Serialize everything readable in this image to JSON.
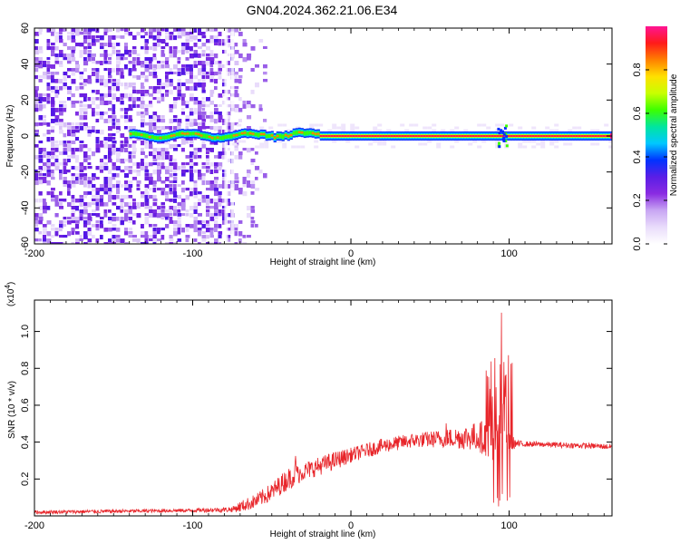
{
  "title": "GN04.2024.362.21.06.E34",
  "chart_data": [
    {
      "type": "heatmap",
      "xlabel": "Height of straight line (km)",
      "ylabel": "Frequency (Hz)",
      "xlim": [
        -200,
        165
      ],
      "ylim": [
        -60,
        60
      ],
      "xticks": [
        -200,
        -100,
        0,
        100
      ],
      "yticks": [
        -60,
        -40,
        -20,
        0,
        20,
        40,
        60
      ],
      "colorbar": {
        "label": "Normalized spectral amplitude",
        "range": [
          0,
          1
        ],
        "ticks": [
          "0.0",
          "0.2",
          "0.4",
          "0.6",
          "0.8"
        ],
        "tick_values": [
          0,
          0.2,
          0.4,
          0.6,
          0.8
        ],
        "colormap": [
          "#ffffff",
          "#e9dcfb",
          "#c8a6f3",
          "#8a2be2",
          "#5a1ee6",
          "#0033ff",
          "#00c8ff",
          "#00e5a0",
          "#3cff00",
          "#c8ff00",
          "#ffe000",
          "#ff8000",
          "#ff1a1a",
          "#ff1493"
        ]
      },
      "features": {
        "noise_region_x": [
          -200,
          -60
        ],
        "dense_noise_x": [
          -200,
          -75
        ],
        "carrier_line": {
          "x": [
            -140,
            165
          ],
          "freq_hz": 0
        },
        "burst_x": 95
      }
    },
    {
      "type": "line",
      "xlabel": "Height of straight line (km)",
      "ylabel": "SNR (10 * v/v)",
      "scale_note": "(x10",
      "scale_exp": "4",
      "xlim": [
        -200,
        165
      ],
      "ylim": [
        0,
        1.17
      ],
      "xticks": [
        -200,
        -100,
        0,
        100
      ],
      "yticks": [
        "0.2",
        "0.4",
        "0.6",
        "0.8",
        "1.0"
      ],
      "ytick_values": [
        0.2,
        0.4,
        0.6,
        0.8,
        1.0
      ],
      "color": "#e8252a",
      "envelope": {
        "x": [
          -200,
          -150,
          -100,
          -75,
          -70,
          -60,
          -50,
          -40,
          -30,
          -20,
          -10,
          0,
          20,
          40,
          60,
          80,
          90,
          95,
          100,
          105,
          110,
          130,
          150,
          165
        ],
        "y": [
          0.02,
          0.025,
          0.03,
          0.035,
          0.05,
          0.08,
          0.13,
          0.2,
          0.24,
          0.27,
          0.3,
          0.33,
          0.38,
          0.41,
          0.42,
          0.43,
          0.42,
          0.4,
          0.4,
          0.39,
          0.39,
          0.385,
          0.38,
          0.375
        ],
        "noise": [
          0.01,
          0.01,
          0.01,
          0.015,
          0.03,
          0.04,
          0.05,
          0.06,
          0.05,
          0.05,
          0.05,
          0.04,
          0.04,
          0.04,
          0.05,
          0.08,
          0.12,
          0.1,
          0.05,
          0.02,
          0.015,
          0.015,
          0.015,
          0.015
        ]
      },
      "peaks": [
        {
          "x": -35,
          "y": 0.33
        },
        {
          "x": 60,
          "y": 0.55
        },
        {
          "x": 88,
          "y": 0.6
        },
        {
          "x": 95,
          "y": 1.17
        },
        {
          "x": 97,
          "y": 0.97
        }
      ]
    }
  ]
}
